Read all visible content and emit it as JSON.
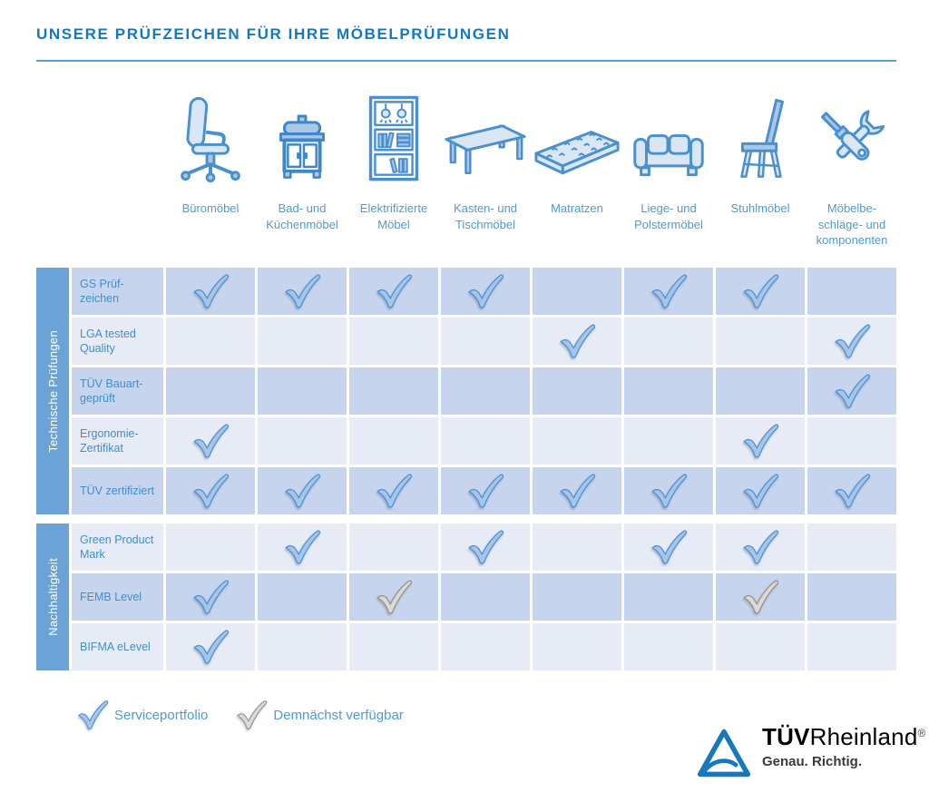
{
  "title": "UNSERE PRÜFZEICHEN FÜR IHRE MÖBELPRÜFUNGEN",
  "colors": {
    "title_blue": "#1777bd",
    "rule_blue": "#55a0d8",
    "column_label_blue": "#4e9ad3",
    "row_label_blue": "#3f8fcb",
    "group_bar_blue": "#6ba3d8",
    "row_dark": "#c6d4ee",
    "row_light": "#e6ebf6",
    "check_blue_fill": "#a6c5e9",
    "check_blue_stroke": "#4f93d1",
    "check_gray_fill": "#dcdad6",
    "check_gray_stroke": "#94938c",
    "logo_blue": "#1878be"
  },
  "columns": [
    {
      "label": "Büromöbel",
      "icon": "office-chair-icon"
    },
    {
      "label": "Bad- und Küchenmöbel",
      "icon": "bath-kitchen-cabinet-icon"
    },
    {
      "label": "Elektrifizierte Möbel",
      "icon": "electrified-shelf-icon"
    },
    {
      "label": "Kasten- und Tischmöbel",
      "icon": "table-icon"
    },
    {
      "label": "Matratzen",
      "icon": "mattress-icon"
    },
    {
      "label": "Liege- und Polstermöbel",
      "icon": "sofa-icon"
    },
    {
      "label": "Stuhlmöbel",
      "icon": "chair-icon"
    },
    {
      "label": "Möbelbe-schläge- und komponenten",
      "icon": "tools-icon"
    }
  ],
  "groups": [
    {
      "label": "Technische Prüfungen",
      "rows": [
        {
          "label": "GS Prüf-zeichen",
          "cells": [
            "blue",
            "blue",
            "blue",
            "blue",
            "",
            "blue",
            "blue",
            ""
          ]
        },
        {
          "label": "LGA tested Quality",
          "cells": [
            "",
            "",
            "",
            "",
            "blue",
            "",
            "",
            "blue"
          ]
        },
        {
          "label": "TÜV Bauart-geprüft",
          "cells": [
            "",
            "",
            "",
            "",
            "",
            "",
            "",
            "blue"
          ]
        },
        {
          "label": "Ergonomie-Zertifikat",
          "cells": [
            "blue",
            "",
            "",
            "",
            "",
            "",
            "blue",
            ""
          ]
        },
        {
          "label": "TÜV zertifiziert",
          "cells": [
            "blue",
            "blue",
            "blue",
            "blue",
            "blue",
            "blue",
            "blue",
            "blue"
          ]
        }
      ]
    },
    {
      "label": "Nachhaltigkeit",
      "rows": [
        {
          "label": "Green Product Mark",
          "cells": [
            "",
            "blue",
            "",
            "blue",
            "",
            "blue",
            "blue",
            ""
          ]
        },
        {
          "label": "FEMB Level",
          "cells": [
            "blue",
            "",
            "gray",
            "",
            "",
            "",
            "gray",
            ""
          ]
        },
        {
          "label": "BIFMA eLevel",
          "cells": [
            "blue",
            "",
            "",
            "",
            "",
            "",
            "",
            ""
          ]
        }
      ]
    }
  ],
  "legend": [
    {
      "check": "blue",
      "label": "Serviceportfolio"
    },
    {
      "check": "gray",
      "label": "Demnächst verfügbar"
    }
  ],
  "logo": {
    "tuv": "TÜV",
    "rheinland": "Rheinland",
    "reg": "®",
    "slogan": "Genau. Richtig."
  }
}
